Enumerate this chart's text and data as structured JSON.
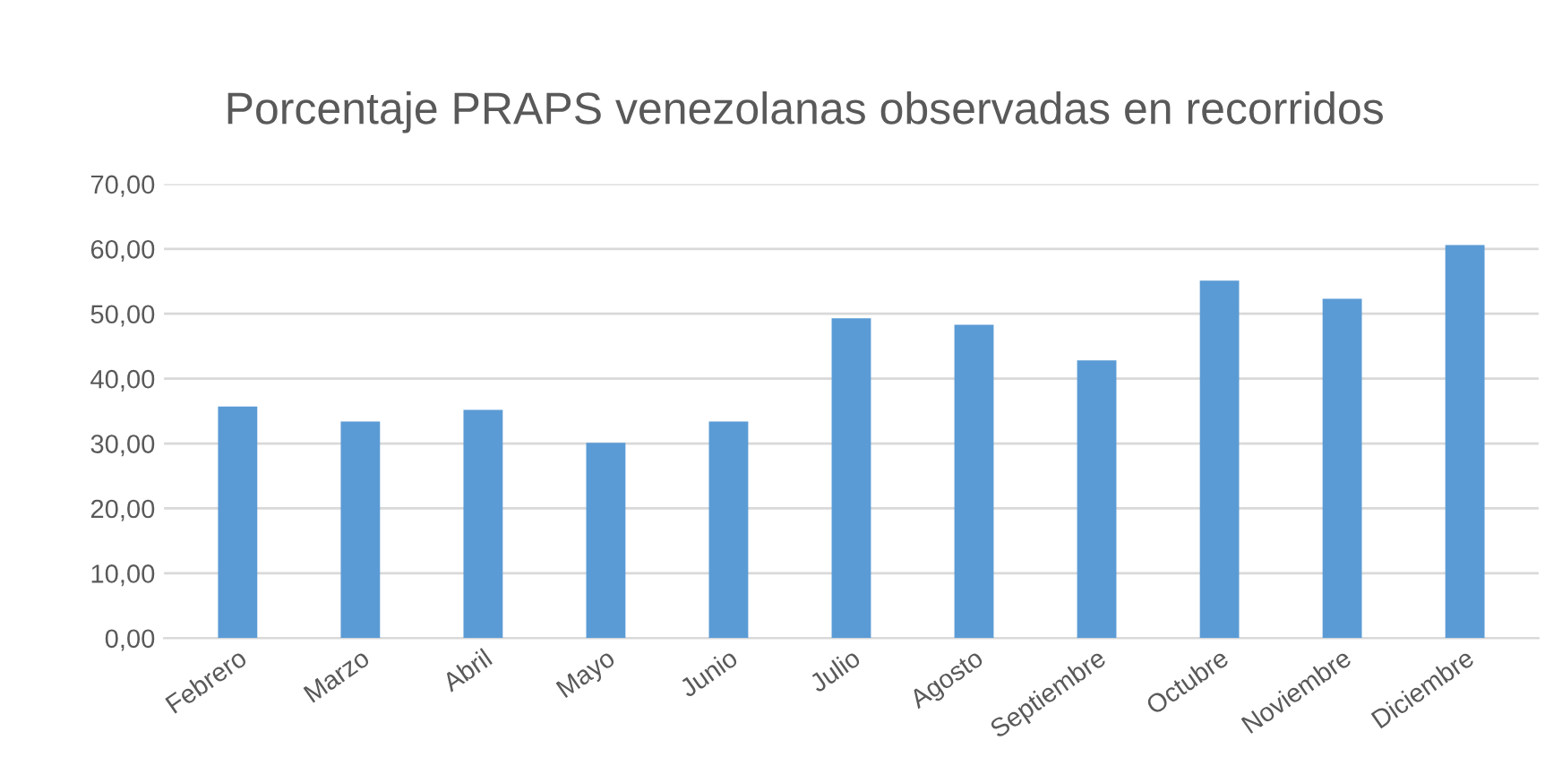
{
  "chart_data": {
    "type": "bar",
    "title": "Porcentaje PRAPS venezolanas observadas en recorridos",
    "categories": [
      "Febrero",
      "Marzo",
      "Abril",
      "Mayo",
      "Junio",
      "Julio",
      "Agosto",
      "Septiembre",
      "Octubre",
      "Noviembre",
      "Diciembre"
    ],
    "values": [
      35.7,
      33.4,
      35.2,
      30.1,
      33.4,
      49.3,
      48.3,
      42.8,
      55.1,
      52.3,
      60.6
    ],
    "color": "#5b9bd5",
    "ylim": [
      0,
      70
    ],
    "yticks": [
      {
        "value": 0,
        "label": "0,00"
      },
      {
        "value": 10,
        "label": "10,00"
      },
      {
        "value": 20,
        "label": "20,00"
      },
      {
        "value": 30,
        "label": "30,00"
      },
      {
        "value": 40,
        "label": "40,00"
      },
      {
        "value": 50,
        "label": "50,00"
      },
      {
        "value": 60,
        "label": "60,00"
      },
      {
        "value": 70,
        "label": "70,00"
      }
    ],
    "grid": "y"
  }
}
